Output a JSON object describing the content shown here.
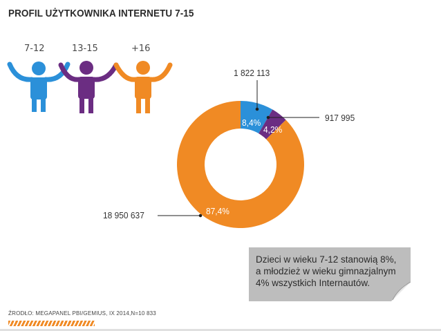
{
  "title": "PROFIL UŻYTKOWNIKA INTERNETU 7-15",
  "age_groups": [
    {
      "label": "7-12",
      "color": "#2b90d9",
      "icon": "child-figure-icon"
    },
    {
      "label": "13-15",
      "color": "#6b2d82",
      "icon": "child-figure-icon"
    },
    {
      "label": "+16",
      "color": "#f08a24",
      "icon": "adult-figure-icon"
    }
  ],
  "chart_data": {
    "type": "pie",
    "subtype": "donut",
    "categories": [
      "7-12",
      "13-15",
      "+16"
    ],
    "values": [
      1822113,
      917995,
      18950637
    ],
    "value_labels": [
      "1 822 113",
      "917 995",
      "18 950 637"
    ],
    "percent_labels": [
      "8,4%",
      "4,2%",
      "87,4%"
    ],
    "percents": [
      8.4,
      4.2,
      87.4
    ],
    "colors": [
      "#2b90d9",
      "#6b2d82",
      "#f08a24"
    ]
  },
  "note": {
    "line1": "Dzieci w wieku 7-12 stanowią 8%,",
    "line2": "a młodzież w wieku gimnazjalnym",
    "line3": "4% wszystkich Internautów."
  },
  "source": "ŹRODŁO: MEGAPANEL PBI/GEMIUS, IX 2014,N=10 833"
}
